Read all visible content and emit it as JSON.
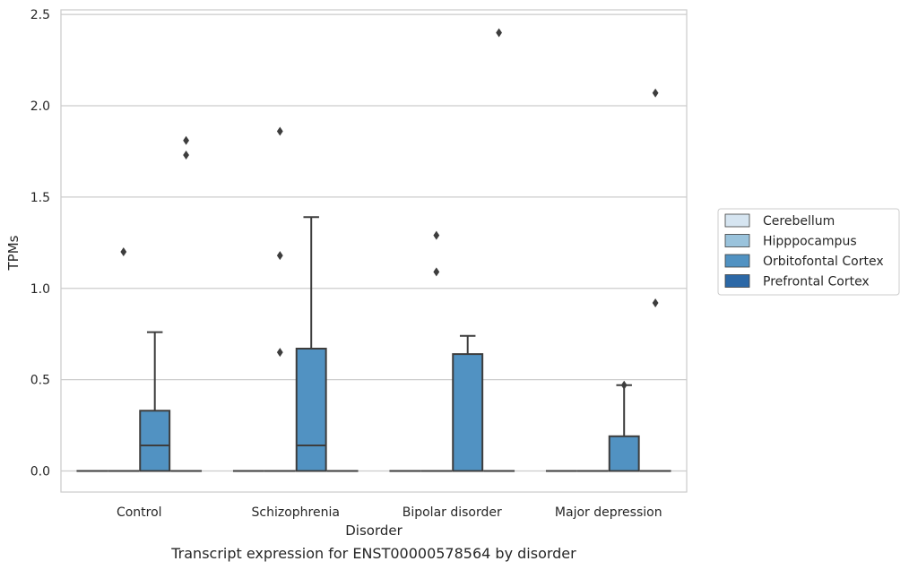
{
  "chart_data": {
    "type": "box",
    "xlabel": "Disorder",
    "ylabel": "TPMs",
    "caption": "Transcript expression for ENST00000578564 by disorder",
    "categories": [
      "Control",
      "Schizophrenia",
      "Bipolar disorder",
      "Major depression"
    ],
    "ylim": [
      -0.12,
      2.53
    ],
    "yticks": [
      0.0,
      0.5,
      1.0,
      1.5,
      2.0,
      2.5
    ],
    "ytick_labels": [
      "0.0",
      "0.5",
      "1.0",
      "1.5",
      "2.0",
      "2.5"
    ],
    "grid": "horizontal",
    "legend": {
      "placement": "right",
      "entries": [
        {
          "name": "Cerebellum",
          "color": "#d6e5f1"
        },
        {
          "name": "Hipppocampus",
          "color": "#9ac3dc"
        },
        {
          "name": "Orbitofontal Cortex",
          "color": "#5192c2"
        },
        {
          "name": "Prefrontal Cortex",
          "color": "#2c68a6"
        }
      ]
    },
    "series": [
      {
        "name": "Cerebellum",
        "color": "#d6e5f1",
        "boxes": [
          {
            "q1": 0,
            "median": 0,
            "q3": 0,
            "whislo": 0,
            "whishi": 0,
            "fliers": []
          },
          {
            "q1": 0,
            "median": 0,
            "q3": 0,
            "whislo": 0,
            "whishi": 0,
            "fliers": []
          },
          {
            "q1": 0,
            "median": 0,
            "q3": 0,
            "whislo": 0,
            "whishi": 0,
            "fliers": []
          },
          {
            "q1": 0,
            "median": 0,
            "q3": 0,
            "whislo": 0,
            "whishi": 0,
            "fliers": []
          }
        ]
      },
      {
        "name": "Hipppocampus",
        "color": "#9ac3dc",
        "boxes": [
          {
            "q1": 0,
            "median": 0,
            "q3": 0,
            "whislo": 0,
            "whishi": 0,
            "fliers": [
              1.2
            ]
          },
          {
            "q1": 0,
            "median": 0,
            "q3": 0,
            "whislo": 0,
            "whishi": 0,
            "fliers": [
              0.65,
              1.18,
              1.86
            ]
          },
          {
            "q1": 0,
            "median": 0,
            "q3": 0,
            "whislo": 0,
            "whishi": 0,
            "fliers": [
              1.09,
              1.29
            ]
          },
          {
            "q1": 0,
            "median": 0,
            "q3": 0,
            "whislo": 0,
            "whishi": 0,
            "fliers": []
          }
        ]
      },
      {
        "name": "Orbitofontal Cortex",
        "color": "#5192c2",
        "boxes": [
          {
            "q1": 0,
            "median": 0.14,
            "q3": 0.33,
            "whislo": 0,
            "whishi": 0.76,
            "fliers": []
          },
          {
            "q1": 0,
            "median": 0.14,
            "q3": 0.67,
            "whislo": 0,
            "whishi": 1.39,
            "fliers": []
          },
          {
            "q1": 0,
            "median": 0,
            "q3": 0.64,
            "whislo": 0,
            "whishi": 0.74,
            "fliers": []
          },
          {
            "q1": 0,
            "median": 0,
            "q3": 0.19,
            "whislo": 0,
            "whishi": 0.47,
            "fliers": [
              0.47
            ]
          }
        ]
      },
      {
        "name": "Prefrontal Cortex",
        "color": "#2c68a6",
        "boxes": [
          {
            "q1": 0,
            "median": 0,
            "q3": 0,
            "whislo": 0,
            "whishi": 0,
            "fliers": [
              1.73,
              1.81
            ]
          },
          {
            "q1": 0,
            "median": 0,
            "q3": 0,
            "whislo": 0,
            "whishi": 0,
            "fliers": []
          },
          {
            "q1": 0,
            "median": 0,
            "q3": 0,
            "whislo": 0,
            "whishi": 0,
            "fliers": [
              2.4
            ]
          },
          {
            "q1": 0,
            "median": 0,
            "q3": 0,
            "whislo": 0,
            "whishi": 0,
            "fliers": [
              2.07,
              0.92
            ]
          }
        ]
      }
    ]
  }
}
